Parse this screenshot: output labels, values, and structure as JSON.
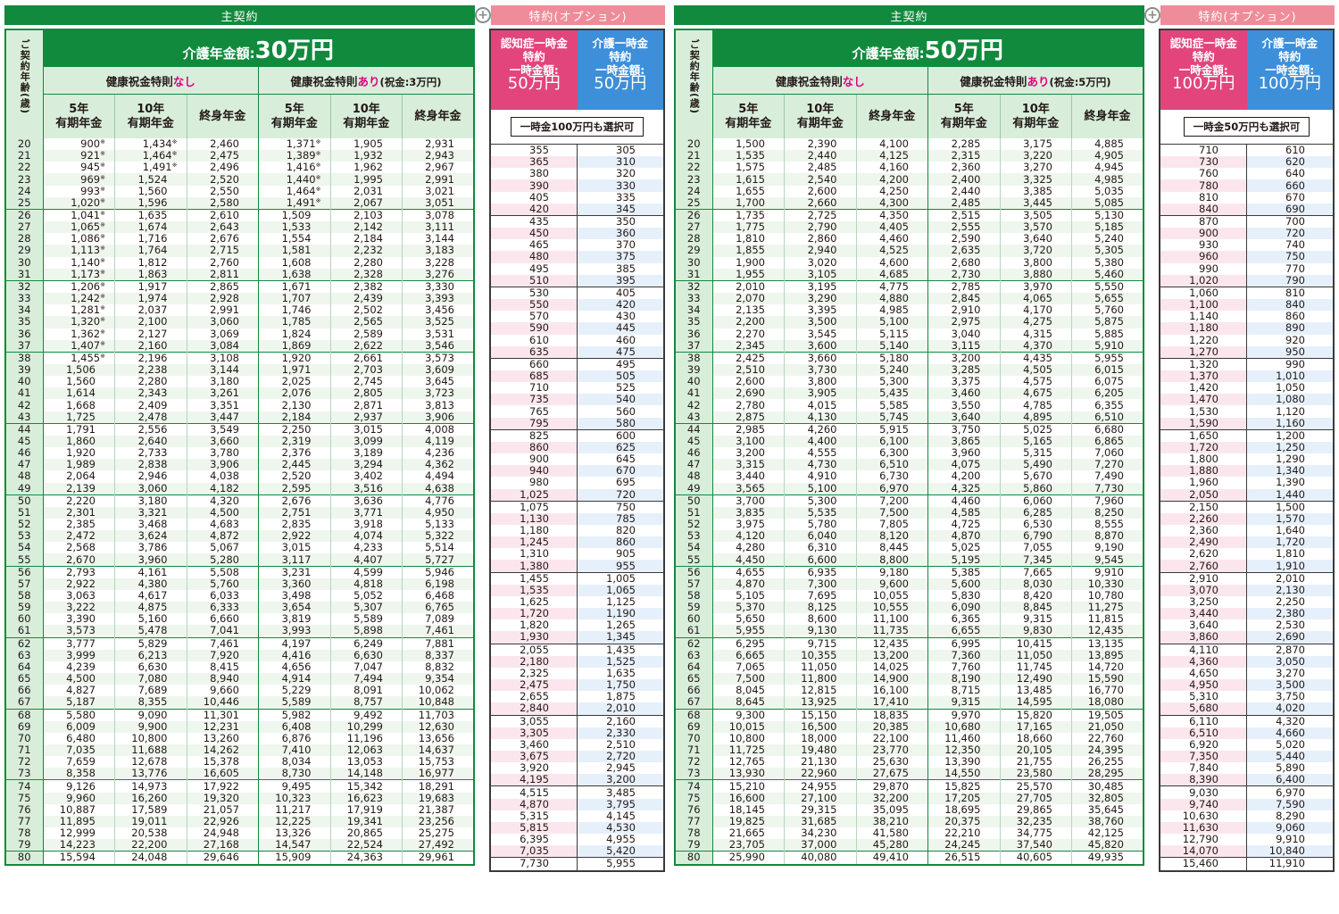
{
  "labels": {
    "main_contract": "主契約",
    "option_rider": "特約(オプション)",
    "plus": "+",
    "age_header": "ご契約年齢(歳)",
    "title_prefix": "介護年金額:",
    "without_bonus": "健康祝金特則",
    "nashi": "なし",
    "with_bonus": "健康祝金特則",
    "ari": "あり",
    "col_5yr": "5年\n有期年金",
    "col_10yr": "10年\n有期年金",
    "col_life": "終身年金",
    "dementia_rider": "認知症一時金\n特約\n一時金額:",
    "care_rider": "介護一時金\n特約\n一時金額:"
  },
  "left": {
    "title_amount": "30万円",
    "bonus_note": "(祝金:3万円)",
    "rider_pink_amount": "50万円",
    "rider_blue_amount": "50万円",
    "rider_note": "一時金100万円も選択可"
  },
  "right": {
    "title_amount": "50万円",
    "bonus_note": "(祝金:5万円)",
    "rider_pink_amount": "100万円",
    "rider_blue_amount": "100万円",
    "rider_note": "一時金50万円も選択可"
  },
  "ages": [
    20,
    21,
    22,
    23,
    24,
    25,
    26,
    27,
    28,
    29,
    30,
    31,
    32,
    33,
    34,
    35,
    36,
    37,
    38,
    39,
    40,
    41,
    42,
    43,
    44,
    45,
    46,
    47,
    48,
    49,
    50,
    51,
    52,
    53,
    54,
    55,
    56,
    57,
    58,
    59,
    60,
    61,
    62,
    63,
    64,
    65,
    66,
    67,
    68,
    69,
    70,
    71,
    72,
    73,
    74,
    75,
    76,
    77,
    78,
    79,
    80
  ],
  "table_30": [
    [
      "900※",
      "1,434※",
      "2,460",
      "1,371※",
      "1,905",
      "2,931",
      "355",
      "305"
    ],
    [
      "921※",
      "1,464※",
      "2,475",
      "1,389※",
      "1,932",
      "2,943",
      "365",
      "310"
    ],
    [
      "945※",
      "1,491※",
      "2,496",
      "1,416※",
      "1,962",
      "2,967",
      "380",
      "320"
    ],
    [
      "969※",
      "1,524",
      "2,520",
      "1,440※",
      "1,995",
      "2,991",
      "390",
      "330"
    ],
    [
      "993※",
      "1,560",
      "2,550",
      "1,464※",
      "2,031",
      "3,021",
      "405",
      "335"
    ],
    [
      "1,020※",
      "1,596",
      "2,580",
      "1,491※",
      "2,067",
      "3,051",
      "420",
      "345"
    ],
    [
      "1,041※",
      "1,635",
      "2,610",
      "1,509",
      "2,103",
      "3,078",
      "435",
      "350"
    ],
    [
      "1,065※",
      "1,674",
      "2,643",
      "1,533",
      "2,142",
      "3,111",
      "450",
      "360"
    ],
    [
      "1,086※",
      "1,716",
      "2,676",
      "1,554",
      "2,184",
      "3,144",
      "465",
      "370"
    ],
    [
      "1,113※",
      "1,764",
      "2,715",
      "1,581",
      "2,232",
      "3,183",
      "480",
      "375"
    ],
    [
      "1,140※",
      "1,812",
      "2,760",
      "1,608",
      "2,280",
      "3,228",
      "495",
      "385"
    ],
    [
      "1,173※",
      "1,863",
      "2,811",
      "1,638",
      "2,328",
      "3,276",
      "510",
      "395"
    ],
    [
      "1,206※",
      "1,917",
      "2,865",
      "1,671",
      "2,382",
      "3,330",
      "530",
      "405"
    ],
    [
      "1,242※",
      "1,974",
      "2,928",
      "1,707",
      "2,439",
      "3,393",
      "550",
      "420"
    ],
    [
      "1,281※",
      "2,037",
      "2,991",
      "1,746",
      "2,502",
      "3,456",
      "570",
      "430"
    ],
    [
      "1,320※",
      "2,100",
      "3,060",
      "1,785",
      "2,565",
      "3,525",
      "590",
      "445"
    ],
    [
      "1,362※",
      "2,127",
      "3,069",
      "1,824",
      "2,589",
      "3,531",
      "610",
      "460"
    ],
    [
      "1,407※",
      "2,160",
      "3,084",
      "1,869",
      "2,622",
      "3,546",
      "635",
      "475"
    ],
    [
      "1,455※",
      "2,196",
      "3,108",
      "1,920",
      "2,661",
      "3,573",
      "660",
      "495"
    ],
    [
      "1,506",
      "2,238",
      "3,144",
      "1,971",
      "2,703",
      "3,609",
      "685",
      "505"
    ],
    [
      "1,560",
      "2,280",
      "3,180",
      "2,025",
      "2,745",
      "3,645",
      "710",
      "525"
    ],
    [
      "1,614",
      "2,343",
      "3,261",
      "2,076",
      "2,805",
      "3,723",
      "735",
      "540"
    ],
    [
      "1,668",
      "2,409",
      "3,351",
      "2,130",
      "2,871",
      "3,813",
      "765",
      "560"
    ],
    [
      "1,725",
      "2,478",
      "3,447",
      "2,184",
      "2,937",
      "3,906",
      "795",
      "580"
    ],
    [
      "1,791",
      "2,556",
      "3,549",
      "2,250",
      "3,015",
      "4,008",
      "825",
      "600"
    ],
    [
      "1,860",
      "2,640",
      "3,660",
      "2,319",
      "3,099",
      "4,119",
      "860",
      "625"
    ],
    [
      "1,920",
      "2,733",
      "3,780",
      "2,376",
      "3,189",
      "4,236",
      "900",
      "645"
    ],
    [
      "1,989",
      "2,838",
      "3,906",
      "2,445",
      "3,294",
      "4,362",
      "940",
      "670"
    ],
    [
      "2,064",
      "2,946",
      "4,038",
      "2,520",
      "3,402",
      "4,494",
      "980",
      "695"
    ],
    [
      "2,139",
      "3,060",
      "4,182",
      "2,595",
      "3,516",
      "4,638",
      "1,025",
      "720"
    ],
    [
      "2,220",
      "3,180",
      "4,320",
      "2,676",
      "3,636",
      "4,776",
      "1,075",
      "750"
    ],
    [
      "2,301",
      "3,321",
      "4,500",
      "2,751",
      "3,771",
      "4,950",
      "1,130",
      "785"
    ],
    [
      "2,385",
      "3,468",
      "4,683",
      "2,835",
      "3,918",
      "5,133",
      "1,180",
      "820"
    ],
    [
      "2,472",
      "3,624",
      "4,872",
      "2,922",
      "4,074",
      "5,322",
      "1,245",
      "860"
    ],
    [
      "2,568",
      "3,786",
      "5,067",
      "3,015",
      "4,233",
      "5,514",
      "1,310",
      "905"
    ],
    [
      "2,670",
      "3,960",
      "5,280",
      "3,117",
      "4,407",
      "5,727",
      "1,380",
      "955"
    ],
    [
      "2,793",
      "4,161",
      "5,508",
      "3,231",
      "4,599",
      "5,946",
      "1,455",
      "1,005"
    ],
    [
      "2,922",
      "4,380",
      "5,760",
      "3,360",
      "4,818",
      "6,198",
      "1,535",
      "1,065"
    ],
    [
      "3,063",
      "4,617",
      "6,033",
      "3,498",
      "5,052",
      "6,468",
      "1,625",
      "1,125"
    ],
    [
      "3,222",
      "4,875",
      "6,333",
      "3,654",
      "5,307",
      "6,765",
      "1,720",
      "1,190"
    ],
    [
      "3,390",
      "5,160",
      "6,660",
      "3,819",
      "5,589",
      "7,089",
      "1,820",
      "1,265"
    ],
    [
      "3,573",
      "5,478",
      "7,041",
      "3,993",
      "5,898",
      "7,461",
      "1,930",
      "1,345"
    ],
    [
      "3,777",
      "5,829",
      "7,461",
      "4,197",
      "6,249",
      "7,881",
      "2,055",
      "1,435"
    ],
    [
      "3,999",
      "6,213",
      "7,920",
      "4,416",
      "6,630",
      "8,337",
      "2,180",
      "1,525"
    ],
    [
      "4,239",
      "6,630",
      "8,415",
      "4,656",
      "7,047",
      "8,832",
      "2,325",
      "1,635"
    ],
    [
      "4,500",
      "7,080",
      "8,940",
      "4,914",
      "7,494",
      "9,354",
      "2,475",
      "1,750"
    ],
    [
      "4,827",
      "7,689",
      "9,660",
      "5,229",
      "8,091",
      "10,062",
      "2,655",
      "1,875"
    ],
    [
      "5,187",
      "8,355",
      "10,446",
      "5,589",
      "8,757",
      "10,848",
      "2,840",
      "2,010"
    ],
    [
      "5,580",
      "9,090",
      "11,301",
      "5,982",
      "9,492",
      "11,703",
      "3,055",
      "2,160"
    ],
    [
      "6,009",
      "9,900",
      "12,231",
      "6,408",
      "10,299",
      "12,630",
      "3,305",
      "2,330"
    ],
    [
      "6,480",
      "10,800",
      "13,260",
      "6,876",
      "11,196",
      "13,656",
      "3,460",
      "2,510"
    ],
    [
      "7,035",
      "11,688",
      "14,262",
      "7,410",
      "12,063",
      "14,637",
      "3,675",
      "2,720"
    ],
    [
      "7,659",
      "12,678",
      "15,378",
      "8,034",
      "13,053",
      "15,753",
      "3,920",
      "2,945"
    ],
    [
      "8,358",
      "13,776",
      "16,605",
      "8,730",
      "14,148",
      "16,977",
      "4,195",
      "3,200"
    ],
    [
      "9,126",
      "14,973",
      "17,922",
      "9,495",
      "15,342",
      "18,291",
      "4,515",
      "3,485"
    ],
    [
      "9,960",
      "16,260",
      "19,320",
      "10,323",
      "16,623",
      "19,683",
      "4,870",
      "3,795"
    ],
    [
      "10,887",
      "17,589",
      "21,057",
      "11,217",
      "17,919",
      "21,387",
      "5,315",
      "4,145"
    ],
    [
      "11,895",
      "19,011",
      "22,926",
      "12,225",
      "19,341",
      "23,256",
      "5,815",
      "4,530"
    ],
    [
      "12,999",
      "20,538",
      "24,948",
      "13,326",
      "20,865",
      "25,275",
      "6,395",
      "4,955"
    ],
    [
      "14,223",
      "22,200",
      "27,168",
      "14,547",
      "22,524",
      "27,492",
      "7,035",
      "5,420"
    ],
    [
      "15,594",
      "24,048",
      "29,646",
      "15,909",
      "24,363",
      "29,961",
      "7,730",
      "5,955"
    ]
  ],
  "table_50": [
    [
      "1,500",
      "2,390",
      "4,100",
      "2,285",
      "3,175",
      "4,885",
      "710",
      "610"
    ],
    [
      "1,535",
      "2,440",
      "4,125",
      "2,315",
      "3,220",
      "4,905",
      "730",
      "620"
    ],
    [
      "1,575",
      "2,485",
      "4,160",
      "2,360",
      "3,270",
      "4,945",
      "760",
      "640"
    ],
    [
      "1,615",
      "2,540",
      "4,200",
      "2,400",
      "3,325",
      "4,985",
      "780",
      "660"
    ],
    [
      "1,655",
      "2,600",
      "4,250",
      "2,440",
      "3,385",
      "5,035",
      "810",
      "670"
    ],
    [
      "1,700",
      "2,660",
      "4,300",
      "2,485",
      "3,445",
      "5,085",
      "840",
      "690"
    ],
    [
      "1,735",
      "2,725",
      "4,350",
      "2,515",
      "3,505",
      "5,130",
      "870",
      "700"
    ],
    [
      "1,775",
      "2,790",
      "4,405",
      "2,555",
      "3,570",
      "5,185",
      "900",
      "720"
    ],
    [
      "1,810",
      "2,860",
      "4,460",
      "2,590",
      "3,640",
      "5,240",
      "930",
      "740"
    ],
    [
      "1,855",
      "2,940",
      "4,525",
      "2,635",
      "3,720",
      "5,305",
      "960",
      "750"
    ],
    [
      "1,900",
      "3,020",
      "4,600",
      "2,680",
      "3,800",
      "5,380",
      "990",
      "770"
    ],
    [
      "1,955",
      "3,105",
      "4,685",
      "2,730",
      "3,880",
      "5,460",
      "1,020",
      "790"
    ],
    [
      "2,010",
      "3,195",
      "4,775",
      "2,785",
      "3,970",
      "5,550",
      "1,060",
      "810"
    ],
    [
      "2,070",
      "3,290",
      "4,880",
      "2,845",
      "4,065",
      "5,655",
      "1,100",
      "840"
    ],
    [
      "2,135",
      "3,395",
      "4,985",
      "2,910",
      "4,170",
      "5,760",
      "1,140",
      "860"
    ],
    [
      "2,200",
      "3,500",
      "5,100",
      "2,975",
      "4,275",
      "5,875",
      "1,180",
      "890"
    ],
    [
      "2,270",
      "3,545",
      "5,115",
      "3,040",
      "4,315",
      "5,885",
      "1,220",
      "920"
    ],
    [
      "2,345",
      "3,600",
      "5,140",
      "3,115",
      "4,370",
      "5,910",
      "1,270",
      "950"
    ],
    [
      "2,425",
      "3,660",
      "5,180",
      "3,200",
      "4,435",
      "5,955",
      "1,320",
      "990"
    ],
    [
      "2,510",
      "3,730",
      "5,240",
      "3,285",
      "4,505",
      "6,015",
      "1,370",
      "1,010"
    ],
    [
      "2,600",
      "3,800",
      "5,300",
      "3,375",
      "4,575",
      "6,075",
      "1,420",
      "1,050"
    ],
    [
      "2,690",
      "3,905",
      "5,435",
      "3,460",
      "4,675",
      "6,205",
      "1,470",
      "1,080"
    ],
    [
      "2,780",
      "4,015",
      "5,585",
      "3,550",
      "4,785",
      "6,355",
      "1,530",
      "1,120"
    ],
    [
      "2,875",
      "4,130",
      "5,745",
      "3,640",
      "4,895",
      "6,510",
      "1,590",
      "1,160"
    ],
    [
      "2,985",
      "4,260",
      "5,915",
      "3,750",
      "5,025",
      "6,680",
      "1,650",
      "1,200"
    ],
    [
      "3,100",
      "4,400",
      "6,100",
      "3,865",
      "5,165",
      "6,865",
      "1,720",
      "1,250"
    ],
    [
      "3,200",
      "4,555",
      "6,300",
      "3,960",
      "5,315",
      "7,060",
      "1,800",
      "1,290"
    ],
    [
      "3,315",
      "4,730",
      "6,510",
      "4,075",
      "5,490",
      "7,270",
      "1,880",
      "1,340"
    ],
    [
      "3,440",
      "4,910",
      "6,730",
      "4,200",
      "5,670",
      "7,490",
      "1,960",
      "1,390"
    ],
    [
      "3,565",
      "5,100",
      "6,970",
      "4,325",
      "5,860",
      "7,730",
      "2,050",
      "1,440"
    ],
    [
      "3,700",
      "5,300",
      "7,200",
      "4,460",
      "6,060",
      "7,960",
      "2,150",
      "1,500"
    ],
    [
      "3,835",
      "5,535",
      "7,500",
      "4,585",
      "6,285",
      "8,250",
      "2,260",
      "1,570"
    ],
    [
      "3,975",
      "5,780",
      "7,805",
      "4,725",
      "6,530",
      "8,555",
      "2,360",
      "1,640"
    ],
    [
      "4,120",
      "6,040",
      "8,120",
      "4,870",
      "6,790",
      "8,870",
      "2,490",
      "1,720"
    ],
    [
      "4,280",
      "6,310",
      "8,445",
      "5,025",
      "7,055",
      "9,190",
      "2,620",
      "1,810"
    ],
    [
      "4,450",
      "6,600",
      "8,800",
      "5,195",
      "7,345",
      "9,545",
      "2,760",
      "1,910"
    ],
    [
      "4,655",
      "6,935",
      "9,180",
      "5,385",
      "7,665",
      "9,910",
      "2,910",
      "2,010"
    ],
    [
      "4,870",
      "7,300",
      "9,600",
      "5,600",
      "8,030",
      "10,330",
      "3,070",
      "2,130"
    ],
    [
      "5,105",
      "7,695",
      "10,055",
      "5,830",
      "8,420",
      "10,780",
      "3,250",
      "2,250"
    ],
    [
      "5,370",
      "8,125",
      "10,555",
      "6,090",
      "8,845",
      "11,275",
      "3,440",
      "2,380"
    ],
    [
      "5,650",
      "8,600",
      "11,100",
      "6,365",
      "9,315",
      "11,815",
      "3,640",
      "2,530"
    ],
    [
      "5,955",
      "9,130",
      "11,735",
      "6,655",
      "9,830",
      "12,435",
      "3,860",
      "2,690"
    ],
    [
      "6,295",
      "9,715",
      "12,435",
      "6,995",
      "10,415",
      "13,135",
      "4,110",
      "2,870"
    ],
    [
      "6,665",
      "10,355",
      "13,200",
      "7,360",
      "11,050",
      "13,895",
      "4,360",
      "3,050"
    ],
    [
      "7,065",
      "11,050",
      "14,025",
      "7,760",
      "11,745",
      "14,720",
      "4,650",
      "3,270"
    ],
    [
      "7,500",
      "11,800",
      "14,900",
      "8,190",
      "12,490",
      "15,590",
      "4,950",
      "3,500"
    ],
    [
      "8,045",
      "12,815",
      "16,100",
      "8,715",
      "13,485",
      "16,770",
      "5,310",
      "3,750"
    ],
    [
      "8,645",
      "13,925",
      "17,410",
      "9,315",
      "14,595",
      "18,080",
      "5,680",
      "4,020"
    ],
    [
      "9,300",
      "15,150",
      "18,835",
      "9,970",
      "15,820",
      "19,505",
      "6,110",
      "4,320"
    ],
    [
      "10,015",
      "16,500",
      "20,385",
      "10,680",
      "17,165",
      "21,050",
      "6,510",
      "4,660"
    ],
    [
      "10,800",
      "18,000",
      "22,100",
      "11,460",
      "18,660",
      "22,760",
      "6,920",
      "5,020"
    ],
    [
      "11,725",
      "19,480",
      "23,770",
      "12,350",
      "20,105",
      "24,395",
      "7,350",
      "5,440"
    ],
    [
      "12,765",
      "21,130",
      "25,630",
      "13,390",
      "21,755",
      "26,255",
      "7,840",
      "5,890"
    ],
    [
      "13,930",
      "22,960",
      "27,675",
      "14,550",
      "23,580",
      "28,295",
      "8,390",
      "6,400"
    ],
    [
      "15,210",
      "24,955",
      "29,870",
      "15,825",
      "25,570",
      "30,485",
      "9,030",
      "6,970"
    ],
    [
      "16,600",
      "27,100",
      "32,200",
      "17,205",
      "27,705",
      "32,805",
      "9,740",
      "7,590"
    ],
    [
      "18,145",
      "29,315",
      "35,095",
      "18,695",
      "29,865",
      "35,645",
      "10,630",
      "8,290"
    ],
    [
      "19,825",
      "31,685",
      "38,210",
      "20,375",
      "32,235",
      "38,760",
      "11,630",
      "9,060"
    ],
    [
      "21,665",
      "34,230",
      "41,580",
      "22,210",
      "34,775",
      "42,125",
      "12,790",
      "9,910"
    ],
    [
      "23,705",
      "37,000",
      "45,280",
      "24,245",
      "37,540",
      "45,820",
      "14,070",
      "10,840"
    ],
    [
      "25,990",
      "40,080",
      "49,410",
      "26,515",
      "40,605",
      "49,935",
      "15,460",
      "11,910"
    ]
  ]
}
